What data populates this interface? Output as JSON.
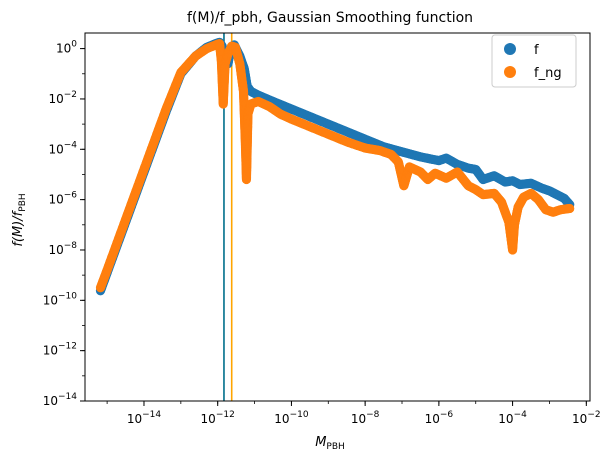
{
  "chart_data": {
    "type": "scatter",
    "title": "f(M)/f_pbh, Gaussian Smoothing function",
    "xlabel": "M",
    "xlabel_sub": "PBH",
    "ylabel_prefix": "f(M)/f",
    "ylabel_sub": "PBH",
    "xscale": "log",
    "yscale": "log",
    "xlim_log10": [
      -15.6,
      -1.9
    ],
    "ylim_log10": [
      -14,
      0.62
    ],
    "x_ticks": [
      {
        "base": "10",
        "exp": "−14",
        "log10": -14
      },
      {
        "base": "10",
        "exp": "−12",
        "log10": -12
      },
      {
        "base": "10",
        "exp": "−10",
        "log10": -10
      },
      {
        "base": "10",
        "exp": "−8",
        "log10": -8
      },
      {
        "base": "10",
        "exp": "−6",
        "log10": -6
      },
      {
        "base": "10",
        "exp": "−4",
        "log10": -4
      },
      {
        "base": "10",
        "exp": "−2",
        "log10": -2
      }
    ],
    "y_ticks": [
      {
        "base": "10",
        "exp": "0",
        "log10": 0
      },
      {
        "base": "10",
        "exp": "−2",
        "log10": -2
      },
      {
        "base": "10",
        "exp": "−4",
        "log10": -4
      },
      {
        "base": "10",
        "exp": "−6",
        "log10": -6
      },
      {
        "base": "10",
        "exp": "−8",
        "log10": -8
      },
      {
        "base": "10",
        "exp": "−10",
        "log10": -10
      },
      {
        "base": "10",
        "exp": "−12",
        "log10": -12
      },
      {
        "base": "10",
        "exp": "−14",
        "log10": -14
      }
    ],
    "vlines": [
      {
        "x_log10": -11.83,
        "color": "#006f8a"
      },
      {
        "x_log10": -11.62,
        "color": "#ffa500"
      }
    ],
    "legend_position": "top-right",
    "series": [
      {
        "name": "f",
        "color": "#1f77b4",
        "points_log10": [
          [
            -15.18,
            -9.62
          ],
          [
            -15.0,
            -8.9
          ],
          [
            -14.6,
            -7.3
          ],
          [
            -14.2,
            -5.7
          ],
          [
            -13.8,
            -4.1
          ],
          [
            -13.4,
            -2.5
          ],
          [
            -13.0,
            -1.0
          ],
          [
            -12.6,
            -0.3
          ],
          [
            -12.3,
            0.05
          ],
          [
            -12.05,
            0.2
          ],
          [
            -11.95,
            0.25
          ],
          [
            -11.88,
            0.1
          ],
          [
            -11.82,
            -0.5
          ],
          [
            -11.78,
            -0.3
          ],
          [
            -11.72,
            -0.6
          ],
          [
            -11.65,
            0.0
          ],
          [
            -11.55,
            0.15
          ],
          [
            -11.4,
            -0.3
          ],
          [
            -11.28,
            -0.8
          ],
          [
            -11.2,
            -1.5
          ],
          [
            -11.1,
            -1.7
          ],
          [
            -10.9,
            -1.85
          ],
          [
            -10.5,
            -2.1
          ],
          [
            -10.0,
            -2.4
          ],
          [
            -9.5,
            -2.7
          ],
          [
            -9.0,
            -3.0
          ],
          [
            -8.5,
            -3.3
          ],
          [
            -8.0,
            -3.6
          ],
          [
            -7.5,
            -3.9
          ],
          [
            -7.0,
            -4.1
          ],
          [
            -6.5,
            -4.3
          ],
          [
            -6.0,
            -4.45
          ],
          [
            -5.8,
            -4.35
          ],
          [
            -5.5,
            -4.6
          ],
          [
            -5.2,
            -4.75
          ],
          [
            -5.0,
            -4.8
          ],
          [
            -4.8,
            -5.2
          ],
          [
            -4.5,
            -5.05
          ],
          [
            -4.2,
            -5.3
          ],
          [
            -4.0,
            -5.25
          ],
          [
            -3.8,
            -5.4
          ],
          [
            -3.5,
            -5.35
          ],
          [
            -3.2,
            -5.55
          ],
          [
            -3.0,
            -5.65
          ],
          [
            -2.8,
            -5.8
          ],
          [
            -2.6,
            -5.95
          ],
          [
            -2.45,
            -6.2
          ]
        ]
      },
      {
        "name": "f_ng",
        "color": "#ff7f0e",
        "points_log10": [
          [
            -15.18,
            -9.5
          ],
          [
            -15.0,
            -8.8
          ],
          [
            -14.6,
            -7.2
          ],
          [
            -14.2,
            -5.6
          ],
          [
            -13.8,
            -4.0
          ],
          [
            -13.4,
            -2.4
          ],
          [
            -13.0,
            -0.95
          ],
          [
            -12.6,
            -0.3
          ],
          [
            -12.3,
            0.0
          ],
          [
            -12.05,
            0.15
          ],
          [
            -11.95,
            0.2
          ],
          [
            -11.9,
            -0.5
          ],
          [
            -11.85,
            -2.2
          ],
          [
            -11.8,
            -0.6
          ],
          [
            -11.72,
            -0.2
          ],
          [
            -11.62,
            0.1
          ],
          [
            -11.52,
            0.05
          ],
          [
            -11.4,
            -0.6
          ],
          [
            -11.3,
            -1.7
          ],
          [
            -11.25,
            -3.7
          ],
          [
            -11.22,
            -5.2
          ],
          [
            -11.18,
            -2.6
          ],
          [
            -11.1,
            -2.2
          ],
          [
            -10.9,
            -2.1
          ],
          [
            -10.6,
            -2.3
          ],
          [
            -10.3,
            -2.6
          ],
          [
            -10.0,
            -2.8
          ],
          [
            -9.5,
            -3.1
          ],
          [
            -9.0,
            -3.4
          ],
          [
            -8.5,
            -3.7
          ],
          [
            -8.0,
            -3.95
          ],
          [
            -7.6,
            -4.05
          ],
          [
            -7.3,
            -4.2
          ],
          [
            -7.1,
            -4.5
          ],
          [
            -6.95,
            -5.45
          ],
          [
            -6.8,
            -4.7
          ],
          [
            -6.5,
            -4.9
          ],
          [
            -6.3,
            -5.2
          ],
          [
            -6.1,
            -4.95
          ],
          [
            -5.8,
            -5.15
          ],
          [
            -5.5,
            -4.9
          ],
          [
            -5.2,
            -5.45
          ],
          [
            -5.0,
            -5.6
          ],
          [
            -4.8,
            -5.8
          ],
          [
            -4.5,
            -5.75
          ],
          [
            -4.3,
            -6.1
          ],
          [
            -4.1,
            -6.9
          ],
          [
            -4.0,
            -8.0
          ],
          [
            -3.95,
            -7.0
          ],
          [
            -3.85,
            -6.3
          ],
          [
            -3.7,
            -5.9
          ],
          [
            -3.5,
            -5.75
          ],
          [
            -3.3,
            -6.0
          ],
          [
            -3.1,
            -6.4
          ],
          [
            -2.9,
            -6.5
          ],
          [
            -2.7,
            -6.4
          ],
          [
            -2.45,
            -6.35
          ]
        ]
      }
    ]
  }
}
